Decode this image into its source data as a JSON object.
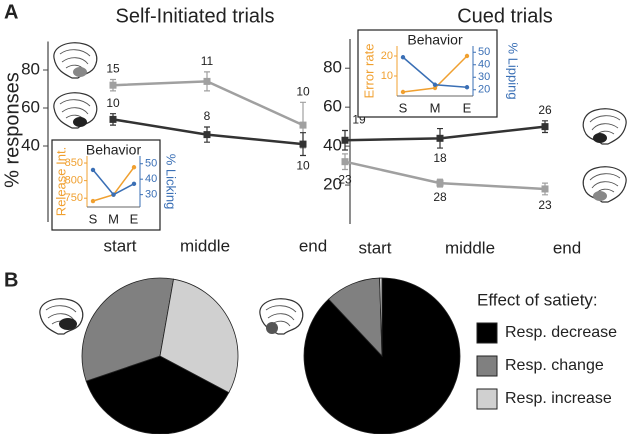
{
  "chart_data": [
    {
      "type": "line",
      "panel": "A",
      "title": "Self-Initiated trials",
      "ylabel": "% responses",
      "categories": [
        "start",
        "middle",
        "end"
      ],
      "ylim": [
        0,
        95
      ],
      "yticks": [
        40,
        60,
        80
      ],
      "series": [
        {
          "color": "#a0a0a0",
          "values": [
            72,
            74,
            51
          ],
          "errors": [
            3,
            5,
            12
          ],
          "n_labels": [
            15,
            11,
            10
          ]
        },
        {
          "color": "#333333",
          "values": [
            54,
            46,
            41
          ],
          "errors": [
            3,
            4,
            6
          ],
          "n_labels": [
            10,
            8,
            10
          ]
        }
      ]
    },
    {
      "type": "line",
      "title": "Cued trials",
      "categories": [
        "start",
        "middle",
        "end"
      ],
      "ylim": [
        0,
        95
      ],
      "yticks": [
        20,
        40,
        60,
        80
      ],
      "series": [
        {
          "color": "#333333",
          "values": [
            43,
            44,
            50
          ],
          "errors": [
            5,
            5,
            3
          ],
          "n_labels": [
            19,
            18,
            26
          ]
        },
        {
          "color": "#a0a0a0",
          "values": [
            32,
            21,
            18
          ],
          "errors": [
            4,
            2,
            3
          ],
          "n_labels": [
            23,
            28,
            23
          ]
        }
      ]
    },
    {
      "type": "inset",
      "title": "Behavior",
      "categories": [
        "S",
        "M",
        "E"
      ],
      "ylabel": "Release Int.",
      "y2label": "% Licking",
      "ylim": [
        725,
        870
      ],
      "yticks": [
        750,
        800,
        850
      ],
      "y2lim": [
        22,
        55
      ],
      "y2ticks": [
        30,
        40,
        50
      ],
      "series": [
        {
          "color": "#f0a030",
          "values": [
            742,
            760,
            838
          ]
        },
        {
          "color": "#3a6fb5",
          "axis": "y2",
          "values": [
            46,
            30,
            37
          ]
        }
      ]
    },
    {
      "type": "inset",
      "title": "Behavior",
      "categories": [
        "S",
        "M",
        "E"
      ],
      "ylabel": "Error rate",
      "y2label": "% Lipping",
      "ylim": [
        0,
        25
      ],
      "yticks": [
        10,
        20
      ],
      "y2lim": [
        15,
        55
      ],
      "y2ticks": [
        20,
        30,
        40,
        50
      ],
      "series": [
        {
          "color": "#f0a030",
          "values": [
            2,
            4,
            20
          ]
        },
        {
          "color": "#3a6fb5",
          "axis": "y2",
          "values": [
            46,
            24,
            22
          ]
        }
      ]
    },
    {
      "type": "pie",
      "panel": "B",
      "colors": [
        "#000000",
        "#808080",
        "#d0d0d0"
      ],
      "values": [
        37,
        33,
        30
      ]
    },
    {
      "type": "pie",
      "legend_title": "Effect of satiety:",
      "categories": [
        "Resp. decrease",
        "Resp. change",
        "Resp. increase"
      ],
      "colors": [
        "#000000",
        "#808080",
        "#d0d0d0"
      ],
      "values": [
        88,
        11.5,
        0.5
      ]
    }
  ]
}
